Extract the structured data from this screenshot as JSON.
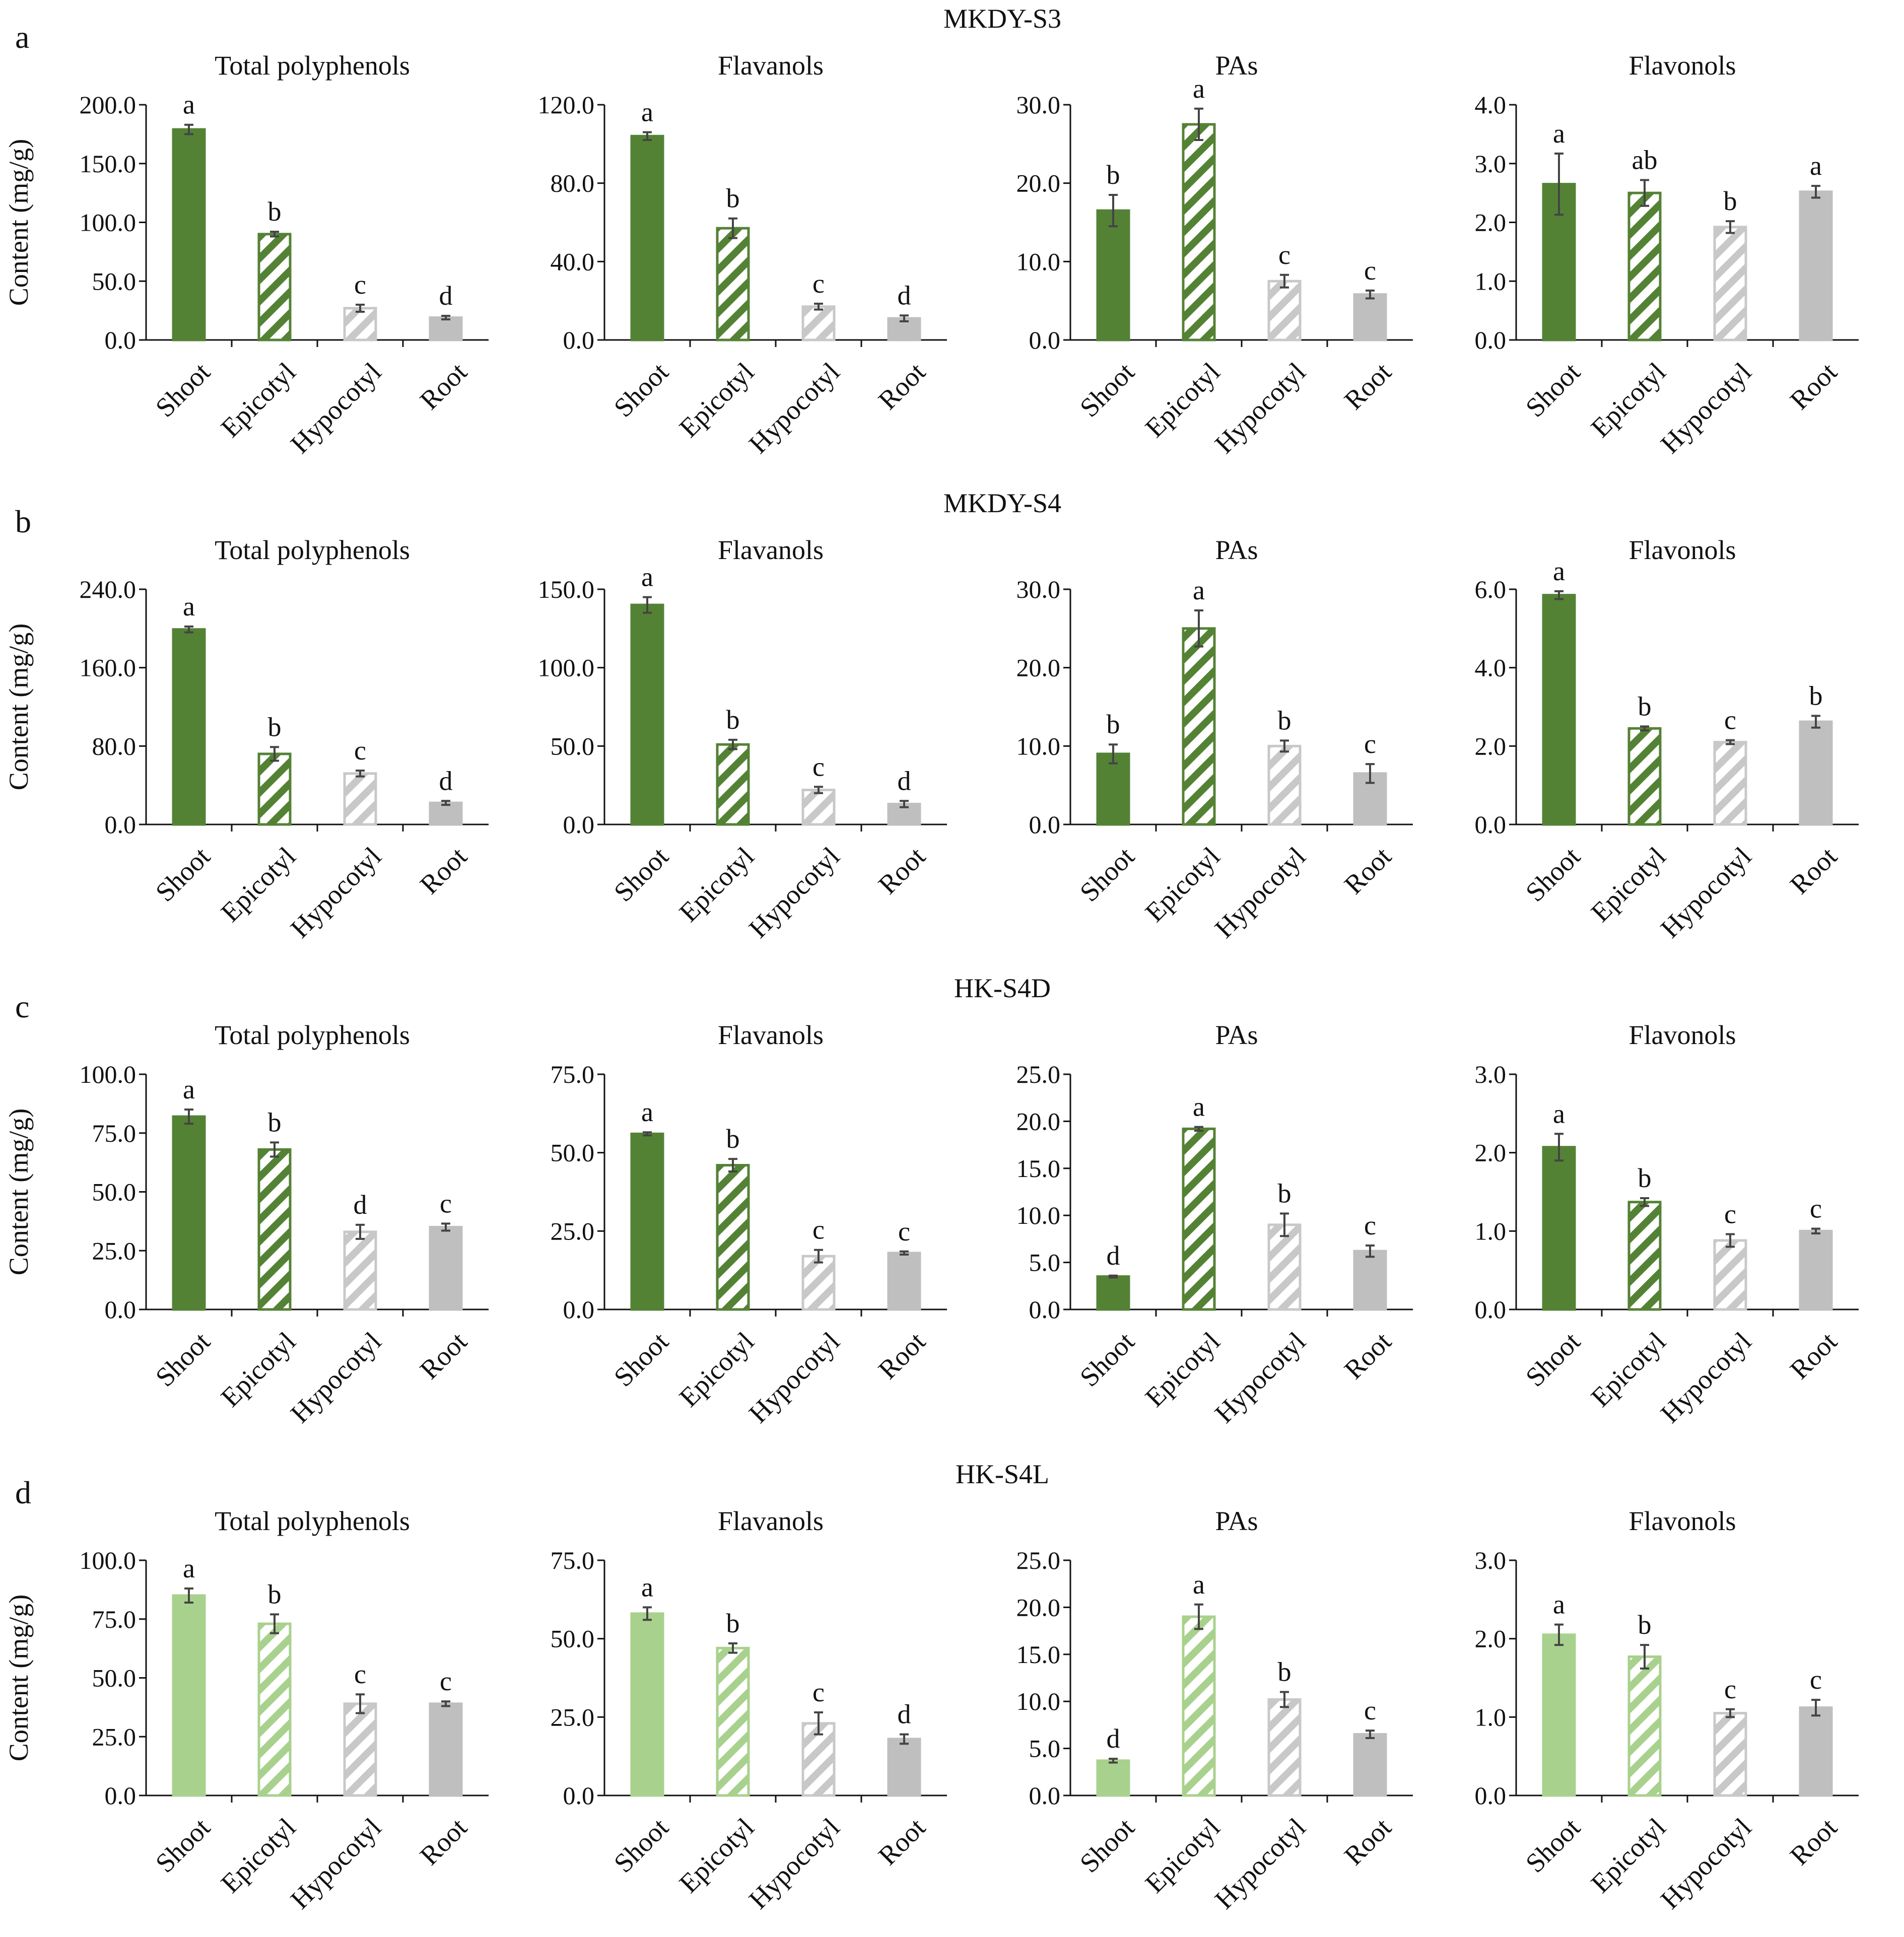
{
  "colors": {
    "shoot_dark": "#548235",
    "shoot_light": "#a9d18e",
    "grey": "#bfbfbf",
    "hatch_grey": "#c8c8c8",
    "axis": "#111111",
    "error_bar": "#444444"
  },
  "categories": [
    "Shoot",
    "Epicotyl",
    "Hypocotyl",
    "Root"
  ],
  "ylabel": "Content (mg/g)",
  "panels": [
    {
      "letter": "a",
      "title": "MKDY-S3",
      "shoot_color": "dark",
      "charts": [
        {
          "title": "Total polyphenols",
          "ylim": [
            0,
            200
          ],
          "ticks": [
            0,
            50,
            100,
            150,
            200
          ],
          "tick_labels": [
            "0.0",
            "50.0",
            "100.0",
            "150.0",
            "200.0"
          ],
          "values": [
            179,
            90,
            27,
            19
          ],
          "errors": [
            4,
            2,
            3,
            1.5
          ],
          "sig": [
            "a",
            "b",
            "c",
            "d"
          ]
        },
        {
          "title": "Flavanols",
          "ylim": [
            0,
            120
          ],
          "ticks": [
            0,
            40,
            80,
            120
          ],
          "tick_labels": [
            "0.0",
            "40.0",
            "80.0",
            "120.0"
          ],
          "values": [
            104,
            57,
            17,
            11
          ],
          "errors": [
            2,
            5,
            1.5,
            1.5
          ],
          "sig": [
            "a",
            "b",
            "c",
            "d"
          ]
        },
        {
          "title": "PAs",
          "ylim": [
            0,
            30
          ],
          "ticks": [
            0,
            10,
            20,
            30
          ],
          "tick_labels": [
            "0.0",
            "10.0",
            "20.0",
            "30.0"
          ],
          "values": [
            16.5,
            27.5,
            7.5,
            5.8
          ],
          "errors": [
            2,
            2,
            0.8,
            0.5
          ],
          "sig": [
            "b",
            "a",
            "c",
            "c"
          ]
        },
        {
          "title": "Flavonols",
          "ylim": [
            0,
            4
          ],
          "ticks": [
            0,
            1,
            2,
            3,
            4
          ],
          "tick_labels": [
            "0.0",
            "1.0",
            "2.0",
            "3.0",
            "4.0"
          ],
          "values": [
            2.65,
            2.5,
            1.92,
            2.52
          ],
          "errors": [
            0.52,
            0.22,
            0.1,
            0.1
          ],
          "sig": [
            "a",
            "ab",
            "b",
            "a"
          ]
        }
      ]
    },
    {
      "letter": "b",
      "title": "MKDY-S4",
      "shoot_color": "dark",
      "charts": [
        {
          "title": "Total polyphenols",
          "ylim": [
            0,
            240
          ],
          "ticks": [
            0,
            80,
            160,
            240
          ],
          "tick_labels": [
            "0.0",
            "80.0",
            "160.0",
            "240.0"
          ],
          "values": [
            199,
            72,
            52,
            22
          ],
          "errors": [
            3,
            7,
            3,
            2
          ],
          "sig": [
            "a",
            "b",
            "c",
            "d"
          ]
        },
        {
          "title": "Flavanols",
          "ylim": [
            0,
            150
          ],
          "ticks": [
            0,
            50,
            100,
            150
          ],
          "tick_labels": [
            "0.0",
            "50.0",
            "100.0",
            "150.0"
          ],
          "values": [
            140,
            51,
            22,
            13
          ],
          "errors": [
            5,
            3,
            2,
            2
          ],
          "sig": [
            "a",
            "b",
            "c",
            "d"
          ]
        },
        {
          "title": "PAs",
          "ylim": [
            0,
            30
          ],
          "ticks": [
            0,
            10,
            20,
            30
          ],
          "tick_labels": [
            "0.0",
            "10.0",
            "20.0",
            "30.0"
          ],
          "values": [
            9,
            25,
            10,
            6.5
          ],
          "errors": [
            1.2,
            2.3,
            0.7,
            1.2
          ],
          "sig": [
            "b",
            "a",
            "b",
            "c"
          ]
        },
        {
          "title": "Flavonols",
          "ylim": [
            0,
            6
          ],
          "ticks": [
            0,
            2,
            4,
            6
          ],
          "tick_labels": [
            "0.0",
            "2.0",
            "4.0",
            "6.0"
          ],
          "values": [
            5.85,
            2.45,
            2.1,
            2.62
          ],
          "errors": [
            0.1,
            0.05,
            0.05,
            0.15
          ],
          "sig": [
            "a",
            "b",
            "c",
            "b"
          ]
        }
      ]
    },
    {
      "letter": "c",
      "title": "HK-S4D",
      "shoot_color": "dark",
      "charts": [
        {
          "title": "Total polyphenols",
          "ylim": [
            0,
            100
          ],
          "ticks": [
            0,
            25,
            50,
            75,
            100
          ],
          "tick_labels": [
            "0.0",
            "25.0",
            "50.0",
            "75.0",
            "100.0"
          ],
          "values": [
            82,
            68,
            33,
            35
          ],
          "errors": [
            3,
            3,
            3,
            1.5
          ],
          "sig": [
            "a",
            "b",
            "d",
            "c"
          ]
        },
        {
          "title": "Flavanols",
          "ylim": [
            0,
            75
          ],
          "ticks": [
            0,
            25,
            50,
            75
          ],
          "tick_labels": [
            "0.0",
            "25.0",
            "50.0",
            "75.0"
          ],
          "values": [
            56,
            46,
            17,
            18
          ],
          "errors": [
            0.5,
            2,
            2,
            0.5
          ],
          "sig": [
            "a",
            "b",
            "c",
            "c"
          ]
        },
        {
          "title": "PAs",
          "ylim": [
            0,
            25
          ],
          "ticks": [
            0,
            5,
            10,
            15,
            20,
            25
          ],
          "tick_labels": [
            "0.0",
            "5.0",
            "10.0",
            "15.0",
            "20.0",
            "25.0"
          ],
          "values": [
            3.5,
            19.2,
            9,
            6.2
          ],
          "errors": [
            0.1,
            0.2,
            1.2,
            0.6
          ],
          "sig": [
            "d",
            "a",
            "b",
            "c"
          ]
        },
        {
          "title": "Flavonols",
          "ylim": [
            0,
            3
          ],
          "ticks": [
            0,
            1,
            2,
            3
          ],
          "tick_labels": [
            "0.0",
            "1.0",
            "2.0",
            "3.0"
          ],
          "values": [
            2.07,
            1.37,
            0.88,
            1.0
          ],
          "errors": [
            0.17,
            0.05,
            0.08,
            0.03
          ],
          "sig": [
            "a",
            "b",
            "c",
            "c"
          ]
        }
      ]
    },
    {
      "letter": "d",
      "title": "HK-S4L",
      "shoot_color": "light",
      "charts": [
        {
          "title": "Total polyphenols",
          "ylim": [
            0,
            100
          ],
          "ticks": [
            0,
            25,
            50,
            75,
            100
          ],
          "tick_labels": [
            "0.0",
            "25.0",
            "50.0",
            "75.0",
            "100.0"
          ],
          "values": [
            85,
            73,
            39,
            39
          ],
          "errors": [
            3,
            4,
            4,
            1
          ],
          "sig": [
            "a",
            "b",
            "c",
            "c"
          ]
        },
        {
          "title": "Flavanols",
          "ylim": [
            0,
            75
          ],
          "ticks": [
            0,
            25,
            50,
            75
          ],
          "tick_labels": [
            "0.0",
            "25.0",
            "50.0",
            "75.0"
          ],
          "values": [
            58,
            47,
            23,
            18
          ],
          "errors": [
            2,
            1.5,
            3.5,
            1.5
          ],
          "sig": [
            "a",
            "b",
            "c",
            "d"
          ]
        },
        {
          "title": "PAs",
          "ylim": [
            0,
            25
          ],
          "ticks": [
            0,
            5,
            10,
            15,
            20,
            25
          ],
          "tick_labels": [
            "0.0",
            "5.0",
            "10.0",
            "15.0",
            "20.0",
            "25.0"
          ],
          "values": [
            3.7,
            19,
            10.2,
            6.5
          ],
          "errors": [
            0.2,
            1.3,
            0.8,
            0.4
          ],
          "sig": [
            "d",
            "a",
            "b",
            "c"
          ]
        },
        {
          "title": "Flavonols",
          "ylim": [
            0,
            3
          ],
          "ticks": [
            0,
            1,
            2,
            3
          ],
          "tick_labels": [
            "0.0",
            "1.0",
            "2.0",
            "3.0"
          ],
          "values": [
            2.05,
            1.77,
            1.05,
            1.12
          ],
          "errors": [
            0.13,
            0.15,
            0.05,
            0.1
          ],
          "sig": [
            "a",
            "b",
            "c",
            "c"
          ]
        }
      ]
    }
  ],
  "chart_data": [
    {
      "type": "bar",
      "panel": "MKDY-S3",
      "title": "Total polyphenols",
      "ylabel": "Content (mg/g)",
      "categories": [
        "Shoot",
        "Epicotyl",
        "Hypocotyl",
        "Root"
      ],
      "values": [
        179,
        90,
        27,
        19
      ],
      "ylim": [
        0,
        200
      ]
    },
    {
      "type": "bar",
      "panel": "MKDY-S3",
      "title": "Flavanols",
      "categories": [
        "Shoot",
        "Epicotyl",
        "Hypocotyl",
        "Root"
      ],
      "values": [
        104,
        57,
        17,
        11
      ],
      "ylim": [
        0,
        120
      ]
    },
    {
      "type": "bar",
      "panel": "MKDY-S3",
      "title": "PAs",
      "categories": [
        "Shoot",
        "Epicotyl",
        "Hypocotyl",
        "Root"
      ],
      "values": [
        16.5,
        27.5,
        7.5,
        5.8
      ],
      "ylim": [
        0,
        30
      ]
    },
    {
      "type": "bar",
      "panel": "MKDY-S3",
      "title": "Flavonols",
      "categories": [
        "Shoot",
        "Epicotyl",
        "Hypocotyl",
        "Root"
      ],
      "values": [
        2.65,
        2.5,
        1.92,
        2.52
      ],
      "ylim": [
        0,
        4
      ]
    },
    {
      "type": "bar",
      "panel": "MKDY-S4",
      "title": "Total polyphenols",
      "ylabel": "Content (mg/g)",
      "categories": [
        "Shoot",
        "Epicotyl",
        "Hypocotyl",
        "Root"
      ],
      "values": [
        199,
        72,
        52,
        22
      ],
      "ylim": [
        0,
        240
      ]
    },
    {
      "type": "bar",
      "panel": "MKDY-S4",
      "title": "Flavanols",
      "categories": [
        "Shoot",
        "Epicotyl",
        "Hypocotyl",
        "Root"
      ],
      "values": [
        140,
        51,
        22,
        13
      ],
      "ylim": [
        0,
        150
      ]
    },
    {
      "type": "bar",
      "panel": "MKDY-S4",
      "title": "PAs",
      "categories": [
        "Shoot",
        "Epicotyl",
        "Hypocotyl",
        "Root"
      ],
      "values": [
        9,
        25,
        10,
        6.5
      ],
      "ylim": [
        0,
        30
      ]
    },
    {
      "type": "bar",
      "panel": "MKDY-S4",
      "title": "Flavonols",
      "categories": [
        "Shoot",
        "Epicotyl",
        "Hypocotyl",
        "Root"
      ],
      "values": [
        5.85,
        2.45,
        2.1,
        2.62
      ],
      "ylim": [
        0,
        6
      ]
    },
    {
      "type": "bar",
      "panel": "HK-S4D",
      "title": "Total polyphenols",
      "ylabel": "Content (mg/g)",
      "categories": [
        "Shoot",
        "Epicotyl",
        "Hypocotyl",
        "Root"
      ],
      "values": [
        82,
        68,
        33,
        35
      ],
      "ylim": [
        0,
        100
      ]
    },
    {
      "type": "bar",
      "panel": "HK-S4D",
      "title": "Flavanols",
      "categories": [
        "Shoot",
        "Epicotyl",
        "Hypocotyl",
        "Root"
      ],
      "values": [
        56,
        46,
        17,
        18
      ],
      "ylim": [
        0,
        75
      ]
    },
    {
      "type": "bar",
      "panel": "HK-S4D",
      "title": "PAs",
      "categories": [
        "Shoot",
        "Epicotyl",
        "Hypocotyl",
        "Root"
      ],
      "values": [
        3.5,
        19.2,
        9,
        6.2
      ],
      "ylim": [
        0,
        25
      ]
    },
    {
      "type": "bar",
      "panel": "HK-S4D",
      "title": "Flavonols",
      "categories": [
        "Shoot",
        "Epicotyl",
        "Hypocotyl",
        "Root"
      ],
      "values": [
        2.07,
        1.37,
        0.88,
        1.0
      ],
      "ylim": [
        0,
        3
      ]
    },
    {
      "type": "bar",
      "panel": "HK-S4L",
      "title": "Total polyphenols",
      "ylabel": "Content (mg/g)",
      "categories": [
        "Shoot",
        "Epicotyl",
        "Hypocotyl",
        "Root"
      ],
      "values": [
        85,
        73,
        39,
        39
      ],
      "ylim": [
        0,
        100
      ]
    },
    {
      "type": "bar",
      "panel": "HK-S4L",
      "title": "Flavanols",
      "categories": [
        "Shoot",
        "Epicotyl",
        "Hypocotyl",
        "Root"
      ],
      "values": [
        58,
        47,
        23,
        18
      ],
      "ylim": [
        0,
        75
      ]
    },
    {
      "type": "bar",
      "panel": "HK-S4L",
      "title": "PAs",
      "categories": [
        "Shoot",
        "Epicotyl",
        "Hypocotyl",
        "Root"
      ],
      "values": [
        3.7,
        19,
        10.2,
        6.5
      ],
      "ylim": [
        0,
        25
      ]
    },
    {
      "type": "bar",
      "panel": "HK-S4L",
      "title": "Flavonols",
      "categories": [
        "Shoot",
        "Epicotyl",
        "Hypocotyl",
        "Root"
      ],
      "values": [
        2.05,
        1.77,
        1.05,
        1.12
      ],
      "ylim": [
        0,
        3
      ]
    }
  ]
}
